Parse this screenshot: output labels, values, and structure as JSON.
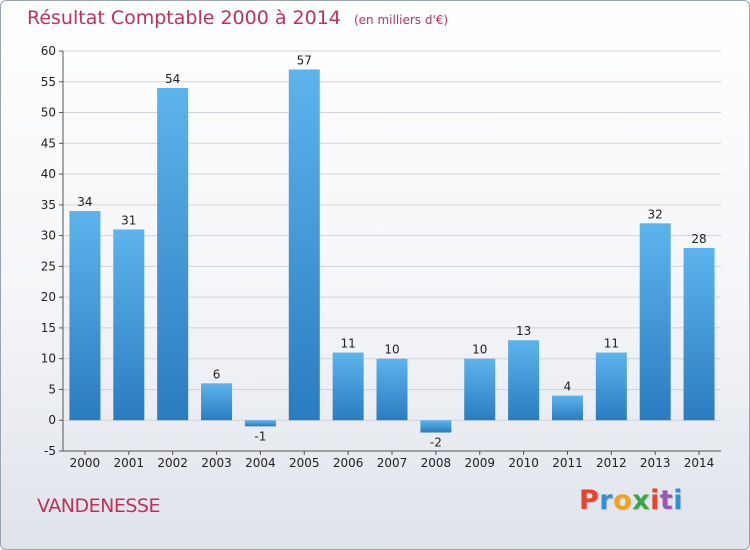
{
  "header": {
    "title": "Résultat Comptable 2000 à 2014",
    "unit": "(en milliers d'€)"
  },
  "footer": {
    "commune": "VANDENESSE",
    "brand": "Proxiti",
    "brand_colors": [
      "#e8432d",
      "#2f8fd8",
      "#f2a31b",
      "#3aa64a",
      "#e8432d",
      "#9b59b6",
      "#2f8fd8"
    ]
  },
  "colors": {
    "accent": "#c0305a",
    "bar_light": "#5db4ec",
    "bar_dark": "#2a7cc0",
    "grid": "#d0d4da"
  },
  "chart_data": {
    "type": "bar",
    "title": "Résultat Comptable 2000 à 2014",
    "subtitle": "(en milliers d'€)",
    "xlabel": "",
    "ylabel": "",
    "categories": [
      "2000",
      "2001",
      "2002",
      "2003",
      "2004",
      "2005",
      "2006",
      "2007",
      "2008",
      "2009",
      "2010",
      "2011",
      "2012",
      "2013",
      "2014"
    ],
    "values": [
      34,
      31,
      54,
      6,
      -1,
      57,
      11,
      10,
      -2,
      10,
      13,
      4,
      11,
      32,
      28
    ],
    "ylim": [
      -5,
      60
    ],
    "yticks": [
      -5,
      0,
      5,
      10,
      15,
      20,
      25,
      30,
      35,
      40,
      45,
      50,
      55,
      60
    ],
    "grid": true,
    "legend": "none"
  }
}
